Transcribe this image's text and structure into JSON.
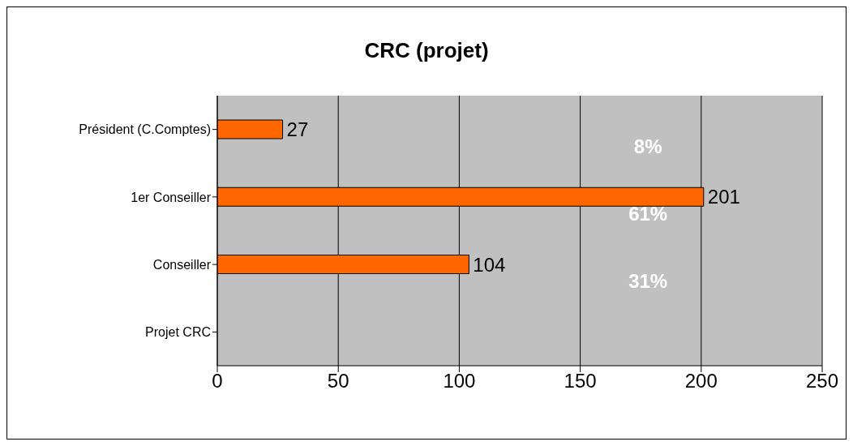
{
  "chart_data": {
    "type": "bar",
    "orientation": "horizontal",
    "title": "CRC (projet)",
    "categories": [
      "Président (C.Comptes)",
      "1er Conseiller",
      "Conseiller",
      "Projet CRC"
    ],
    "values": [
      27,
      201,
      104,
      null
    ],
    "color": "#ff6600",
    "xlim": [
      0,
      250
    ],
    "xticks": [
      0,
      50,
      100,
      150,
      200,
      250
    ],
    "grid": "x",
    "data_labels": true,
    "legend": false,
    "annotations": [
      "8%",
      "61%",
      "31%"
    ]
  }
}
